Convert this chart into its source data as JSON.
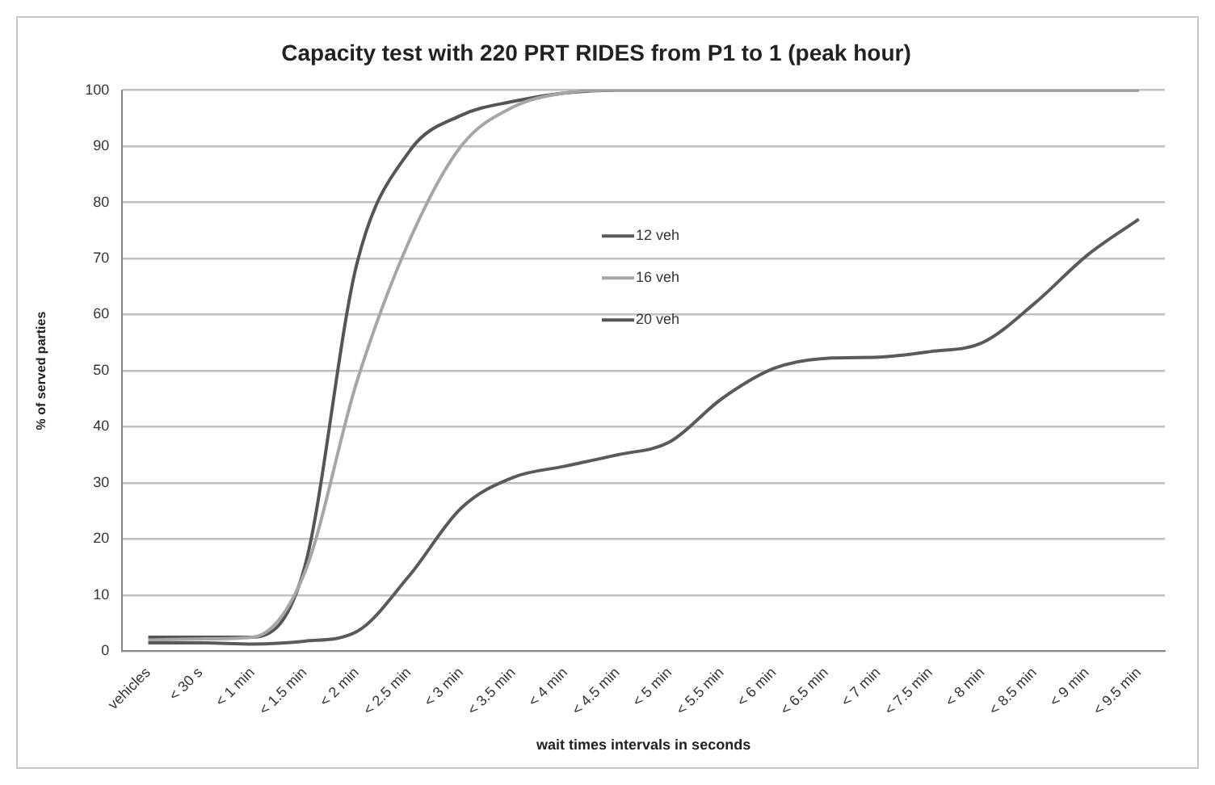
{
  "chart_data": {
    "type": "line",
    "title": "Capacity test with 220 PRT RIDES from P1 to 1 (peak hour)",
    "xlabel": "wait times intervals in seconds",
    "ylabel": "% of served parties",
    "categories": [
      "vehicles",
      "< 30 s",
      "< 1 min",
      "< 1.5 min",
      "< 2 min",
      "< 2.5 min",
      "< 3 min",
      "< 3.5 min",
      "< 4 min",
      "< 4.5 min",
      "< 5 min",
      "< 5.5 min",
      "< 6 min",
      "< 6.5 min",
      "< 7 min",
      "< 7.5 min",
      "< 8 min",
      "< 8.5 min",
      "< 9 min",
      "< 9.5 min"
    ],
    "series": [
      {
        "name": "12 veh",
        "color": "#5a5a5a",
        "values": [
          1.5,
          1.5,
          1.3,
          1.8,
          3.5,
          13.4,
          25.5,
          31,
          33,
          35,
          37.3,
          45,
          50.4,
          52.2,
          52.4,
          53.4,
          55,
          62,
          70.5,
          77
        ]
      },
      {
        "name": "16 veh",
        "color": "#a6a6a6",
        "values": [
          2,
          2.2,
          2.5,
          14,
          48,
          73,
          90,
          97,
          99.5,
          100,
          100,
          100,
          100,
          100,
          100,
          100,
          100,
          100,
          100,
          100
        ]
      },
      {
        "name": "20 veh",
        "color": "#555555",
        "values": [
          2.5,
          2.5,
          2.5,
          15,
          69,
          89,
          95.5,
          98,
          99.5,
          100,
          100,
          100,
          100,
          100,
          100,
          100,
          100,
          100,
          100,
          100
        ]
      }
    ],
    "ylim": [
      0,
      100
    ],
    "yticks": [
      0,
      10,
      20,
      30,
      40,
      50,
      60,
      70,
      80,
      90,
      100
    ],
    "grid": "y",
    "legend": "center",
    "marker": "none",
    "line_style": "solid"
  }
}
